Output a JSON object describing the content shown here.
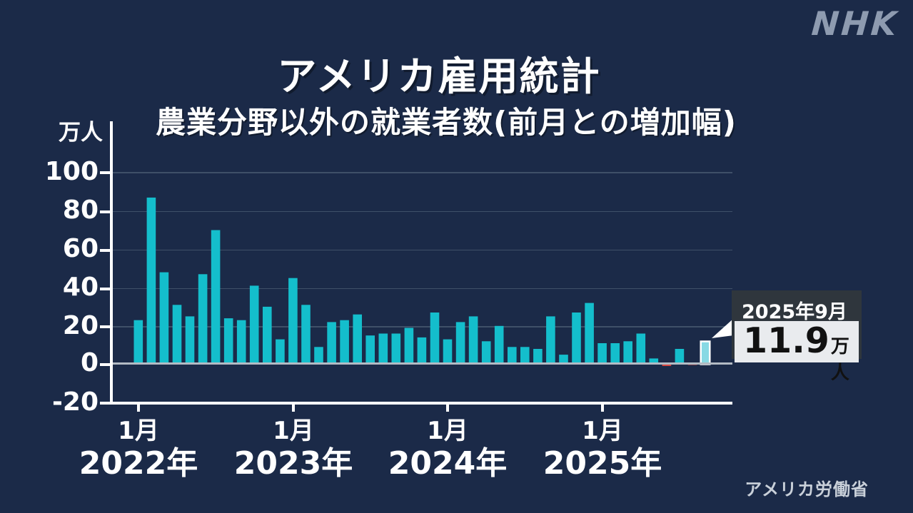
{
  "header": {
    "logo": "NHK",
    "title": "アメリカ雇用統計",
    "subtitle": "農業分野以外の就業者数(前月との増加幅)"
  },
  "source": "アメリカ労働省",
  "chart_data": {
    "type": "bar",
    "title": "アメリカ雇用統計",
    "subtitle": "農業分野以外の就業者数(前月との増加幅)",
    "unit_label": "万人",
    "ylabel": "万人",
    "ylim": [
      -20,
      100
    ],
    "ytick_labels": [
      "100",
      "80",
      "60",
      "40",
      "20",
      "0",
      "-20"
    ],
    "grid": true,
    "x_tick_groups": [
      {
        "month": "1月",
        "year": "2022年"
      },
      {
        "month": "1月",
        "year": "2023年"
      },
      {
        "month": "1月",
        "year": "2024年"
      },
      {
        "month": "1月",
        "year": "2025年"
      }
    ],
    "months": [
      "2022-01",
      "2022-02",
      "2022-03",
      "2022-04",
      "2022-05",
      "2022-06",
      "2022-07",
      "2022-08",
      "2022-09",
      "2022-10",
      "2022-11",
      "2022-12",
      "2023-01",
      "2023-02",
      "2023-03",
      "2023-04",
      "2023-05",
      "2023-06",
      "2023-07",
      "2023-08",
      "2023-09",
      "2023-10",
      "2023-11",
      "2023-12",
      "2024-01",
      "2024-02",
      "2024-03",
      "2024-04",
      "2024-05",
      "2024-06",
      "2024-07",
      "2024-08",
      "2024-09",
      "2024-10",
      "2024-11",
      "2024-12",
      "2025-01",
      "2025-02",
      "2025-03",
      "2025-04",
      "2025-05",
      "2025-06",
      "2025-07",
      "2025-08",
      "2025-09"
    ],
    "series": [
      {
        "name": "就業者数 前月との増加幅(万人)",
        "values": [
          23,
          87,
          48,
          31,
          25,
          47,
          70,
          24,
          23,
          41,
          30,
          13,
          45,
          31,
          9,
          22,
          23,
          26,
          15,
          16,
          16,
          19,
          14,
          27,
          13,
          22,
          25,
          12,
          20,
          9,
          9,
          8,
          25,
          5,
          27,
          32,
          11,
          11,
          12,
          16,
          3,
          -1.3,
          8,
          -0.4,
          11.9
        ]
      }
    ],
    "highlight_index": 44,
    "colors": {
      "positive": "#14becc",
      "negative": "#d6453f",
      "highlight": "#87d9e4",
      "highlight_border": "#ffffff",
      "background": "#1b2a48",
      "axis": "#ffffff",
      "zero_line": "#b3bbc4",
      "gridline": "#3f5068"
    },
    "annotation": {
      "title": "2025年9月",
      "value": "11.9",
      "unit": "万人"
    }
  }
}
